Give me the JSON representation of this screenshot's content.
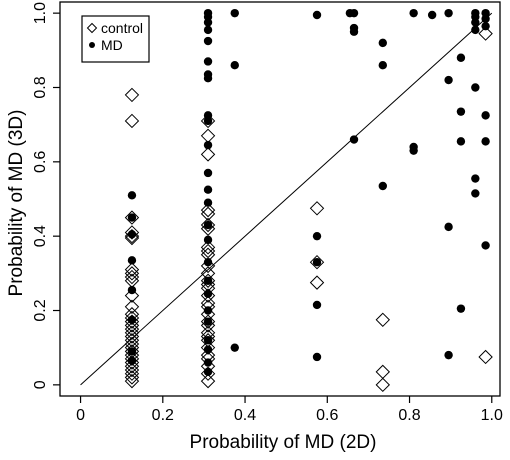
{
  "chart_data": {
    "type": "scatter",
    "xlabel": "Probability of MD (2D)",
    "ylabel": "Probability of MD (3D)",
    "xlim": [
      -0.05,
      1.02
    ],
    "ylim": [
      -0.03,
      1.03
    ],
    "xticks": [
      "0",
      "0.2",
      "0.4",
      "0.6",
      "0.8",
      "1.0"
    ],
    "yticks": [
      "0",
      "0.2",
      "0.4",
      "0.6",
      "0.8",
      "1.0"
    ],
    "grid": false,
    "legend_position": "top-left",
    "reference_line": {
      "from": [
        0,
        0
      ],
      "to": [
        1,
        1
      ]
    },
    "series": [
      {
        "name": "control",
        "marker": "open-diamond",
        "points": [
          [
            0.125,
            0.78
          ],
          [
            0.125,
            0.71
          ],
          [
            0.125,
            0.45
          ],
          [
            0.125,
            0.41
          ],
          [
            0.125,
            0.4
          ],
          [
            0.125,
            0.395
          ],
          [
            0.125,
            0.31
          ],
          [
            0.125,
            0.3
          ],
          [
            0.125,
            0.29
          ],
          [
            0.125,
            0.28
          ],
          [
            0.125,
            0.24
          ],
          [
            0.125,
            0.21
          ],
          [
            0.125,
            0.19
          ],
          [
            0.125,
            0.18
          ],
          [
            0.125,
            0.17
          ],
          [
            0.125,
            0.16
          ],
          [
            0.125,
            0.15
          ],
          [
            0.125,
            0.14
          ],
          [
            0.125,
            0.13
          ],
          [
            0.125,
            0.12
          ],
          [
            0.125,
            0.11
          ],
          [
            0.125,
            0.1
          ],
          [
            0.125,
            0.09
          ],
          [
            0.125,
            0.08
          ],
          [
            0.125,
            0.07
          ],
          [
            0.125,
            0.06
          ],
          [
            0.125,
            0.05
          ],
          [
            0.125,
            0.04
          ],
          [
            0.125,
            0.03
          ],
          [
            0.125,
            0.02
          ],
          [
            0.125,
            0.01
          ],
          [
            0.31,
            0.71
          ],
          [
            0.31,
            0.67
          ],
          [
            0.31,
            0.62
          ],
          [
            0.31,
            0.47
          ],
          [
            0.31,
            0.46
          ],
          [
            0.31,
            0.43
          ],
          [
            0.31,
            0.42
          ],
          [
            0.31,
            0.37
          ],
          [
            0.31,
            0.36
          ],
          [
            0.31,
            0.35
          ],
          [
            0.31,
            0.32
          ],
          [
            0.31,
            0.3
          ],
          [
            0.31,
            0.28
          ],
          [
            0.31,
            0.27
          ],
          [
            0.31,
            0.26
          ],
          [
            0.31,
            0.24
          ],
          [
            0.31,
            0.22
          ],
          [
            0.31,
            0.21
          ],
          [
            0.31,
            0.19
          ],
          [
            0.31,
            0.17
          ],
          [
            0.31,
            0.16
          ],
          [
            0.31,
            0.14
          ],
          [
            0.31,
            0.13
          ],
          [
            0.31,
            0.12
          ],
          [
            0.31,
            0.1
          ],
          [
            0.31,
            0.08
          ],
          [
            0.31,
            0.07
          ],
          [
            0.31,
            0.05
          ],
          [
            0.31,
            0.03
          ],
          [
            0.31,
            0.01
          ],
          [
            0.575,
            0.475
          ],
          [
            0.575,
            0.33
          ],
          [
            0.575,
            0.275
          ],
          [
            0.735,
            0.175
          ],
          [
            0.735,
            0.035
          ],
          [
            0.735,
            0.0
          ],
          [
            0.985,
            0.945
          ],
          [
            0.985,
            0.075
          ]
        ]
      },
      {
        "name": "MD",
        "marker": "filled-circle",
        "points": [
          [
            0.125,
            0.51
          ],
          [
            0.125,
            0.45
          ],
          [
            0.125,
            0.405
          ],
          [
            0.125,
            0.335
          ],
          [
            0.125,
            0.255
          ],
          [
            0.125,
            0.175
          ],
          [
            0.125,
            0.09
          ],
          [
            0.125,
            0.065
          ],
          [
            0.31,
            1.0
          ],
          [
            0.31,
            0.99
          ],
          [
            0.31,
            0.975
          ],
          [
            0.31,
            0.955
          ],
          [
            0.31,
            0.925
          ],
          [
            0.31,
            0.87
          ],
          [
            0.31,
            0.835
          ],
          [
            0.31,
            0.825
          ],
          [
            0.31,
            0.725
          ],
          [
            0.31,
            0.71
          ],
          [
            0.31,
            0.645
          ],
          [
            0.31,
            0.57
          ],
          [
            0.31,
            0.525
          ],
          [
            0.31,
            0.49
          ],
          [
            0.31,
            0.43
          ],
          [
            0.31,
            0.39
          ],
          [
            0.31,
            0.33
          ],
          [
            0.31,
            0.28
          ],
          [
            0.31,
            0.245
          ],
          [
            0.31,
            0.2
          ],
          [
            0.31,
            0.17
          ],
          [
            0.31,
            0.12
          ],
          [
            0.31,
            0.095
          ],
          [
            0.31,
            0.06
          ],
          [
            0.31,
            0.035
          ],
          [
            0.375,
            1.0
          ],
          [
            0.375,
            0.86
          ],
          [
            0.375,
            0.1
          ],
          [
            0.575,
            0.995
          ],
          [
            0.575,
            0.4
          ],
          [
            0.575,
            0.33
          ],
          [
            0.575,
            0.215
          ],
          [
            0.575,
            0.075
          ],
          [
            0.655,
            1.0
          ],
          [
            0.665,
            1.0
          ],
          [
            0.665,
            0.96
          ],
          [
            0.665,
            0.95
          ],
          [
            0.665,
            0.66
          ],
          [
            0.735,
            0.92
          ],
          [
            0.735,
            0.86
          ],
          [
            0.735,
            0.535
          ],
          [
            0.81,
            1.0
          ],
          [
            0.81,
            0.64
          ],
          [
            0.81,
            0.63
          ],
          [
            0.855,
            0.995
          ],
          [
            0.895,
            1.0
          ],
          [
            0.895,
            0.82
          ],
          [
            0.895,
            0.425
          ],
          [
            0.895,
            0.08
          ],
          [
            0.925,
            0.88
          ],
          [
            0.925,
            0.735
          ],
          [
            0.925,
            0.655
          ],
          [
            0.925,
            0.205
          ],
          [
            0.96,
            1.0
          ],
          [
            0.96,
            0.99
          ],
          [
            0.96,
            0.975
          ],
          [
            0.96,
            0.955
          ],
          [
            0.96,
            0.8
          ],
          [
            0.96,
            0.555
          ],
          [
            0.96,
            0.515
          ],
          [
            0.985,
            1.0
          ],
          [
            0.985,
            0.985
          ],
          [
            0.985,
            0.965
          ],
          [
            0.985,
            0.725
          ],
          [
            0.985,
            0.655
          ],
          [
            0.985,
            0.375
          ]
        ]
      }
    ]
  }
}
